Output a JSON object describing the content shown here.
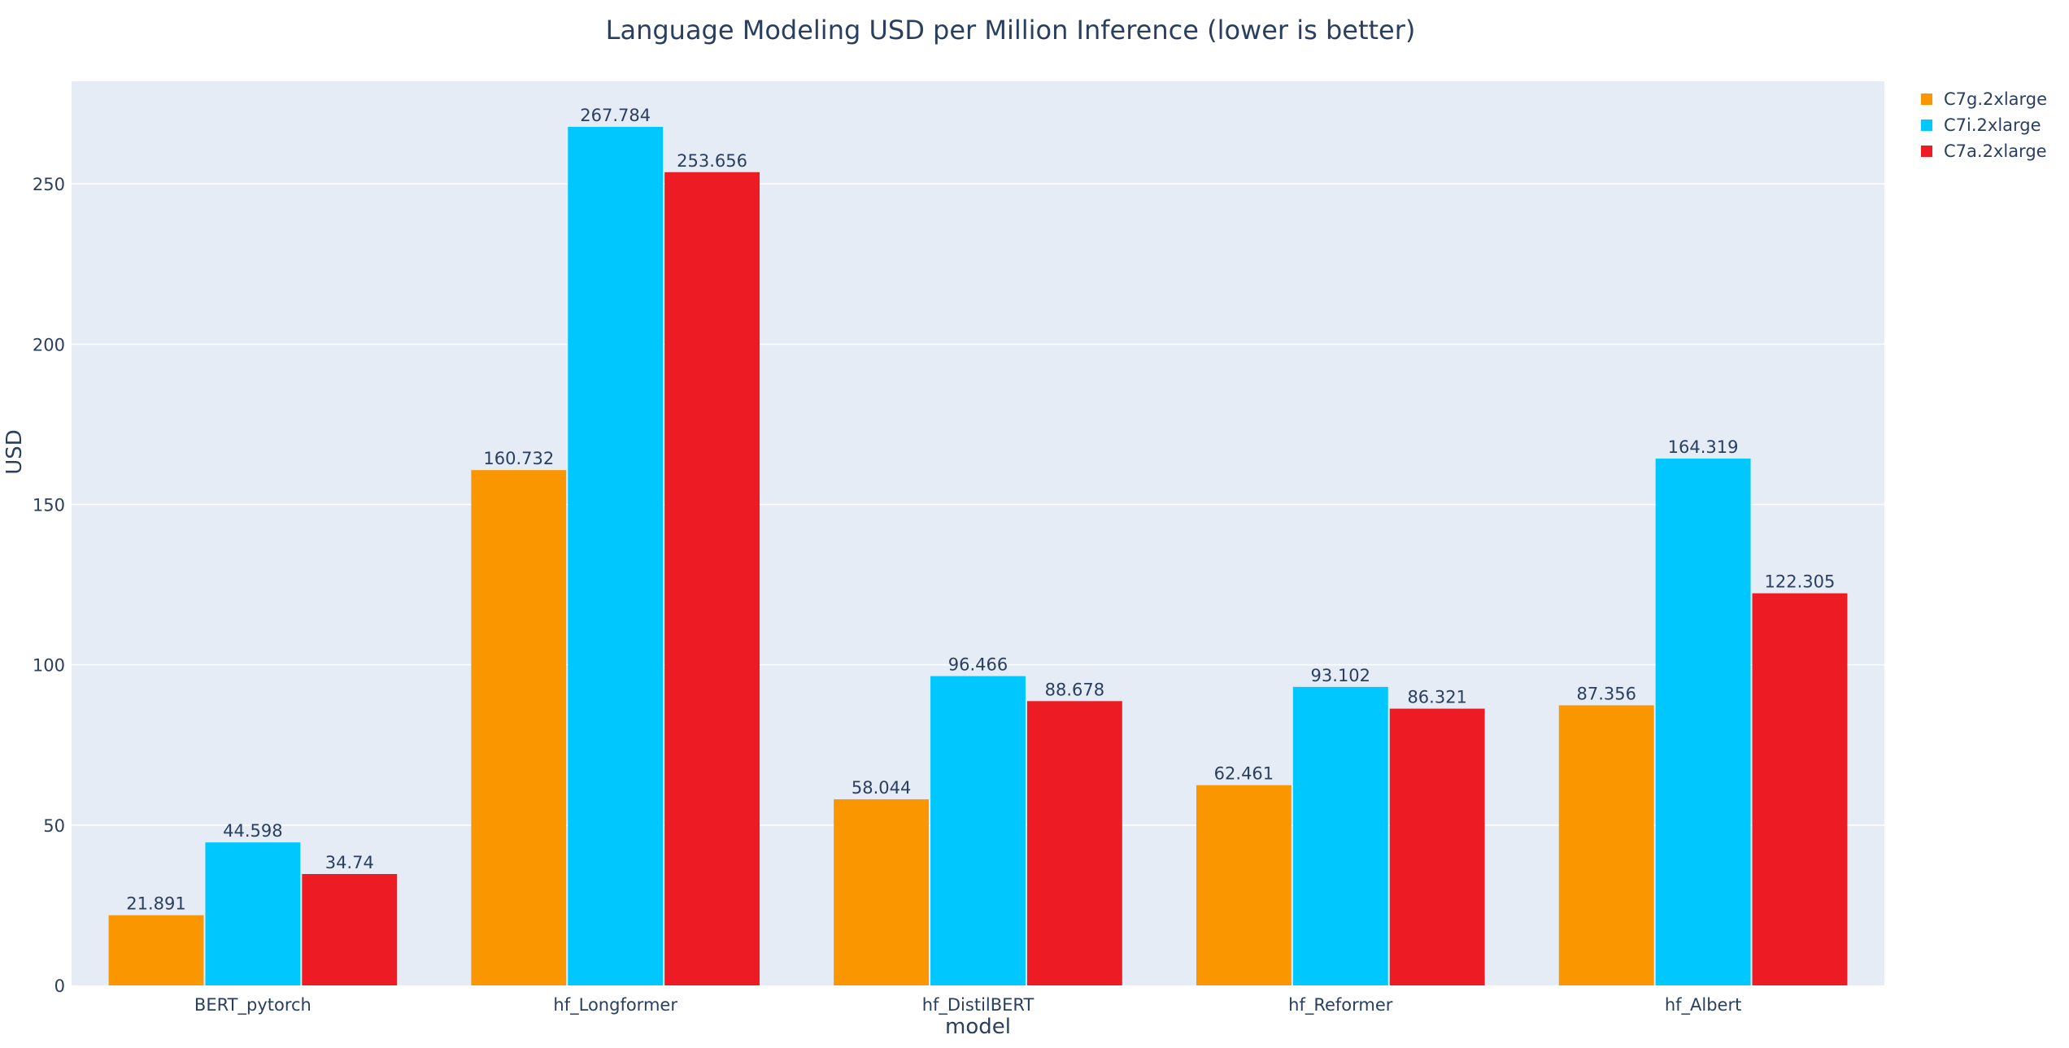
{
  "chart_data": {
    "type": "bar",
    "title": "Language Modeling USD per Million Inference (lower is better)",
    "xlabel": "model",
    "ylabel": "USD",
    "categories": [
      "BERT_pytorch",
      "hf_Longformer",
      "hf_DistilBERT",
      "hf_Reformer",
      "hf_Albert"
    ],
    "series": [
      {
        "name": "C7g.2xlarge",
        "color": "#fa9600",
        "values": [
          21.891,
          160.732,
          58.044,
          62.461,
          87.356
        ]
      },
      {
        "name": "C7i.2xlarge",
        "color": "#00c8ff",
        "values": [
          44.598,
          267.784,
          96.466,
          93.102,
          164.319
        ]
      },
      {
        "name": "C7a.2xlarge",
        "color": "#ed1c24",
        "values": [
          34.74,
          253.656,
          88.678,
          86.321,
          122.305
        ]
      }
    ],
    "value_labels": [
      [
        "21.891",
        "160.732",
        "58.044",
        "62.461",
        "87.356"
      ],
      [
        "44.598",
        "267.784",
        "96.466",
        "93.102",
        "164.319"
      ],
      [
        "34.74",
        "253.656",
        "88.678",
        "86.321",
        "122.305"
      ]
    ],
    "ylim": [
      0,
      282
    ],
    "yticks": [
      0,
      50,
      100,
      150,
      200,
      250
    ],
    "grid": true,
    "legend_position": "top-right",
    "background_color": "#e5ecf6",
    "text_color": "#2a3f5f"
  }
}
